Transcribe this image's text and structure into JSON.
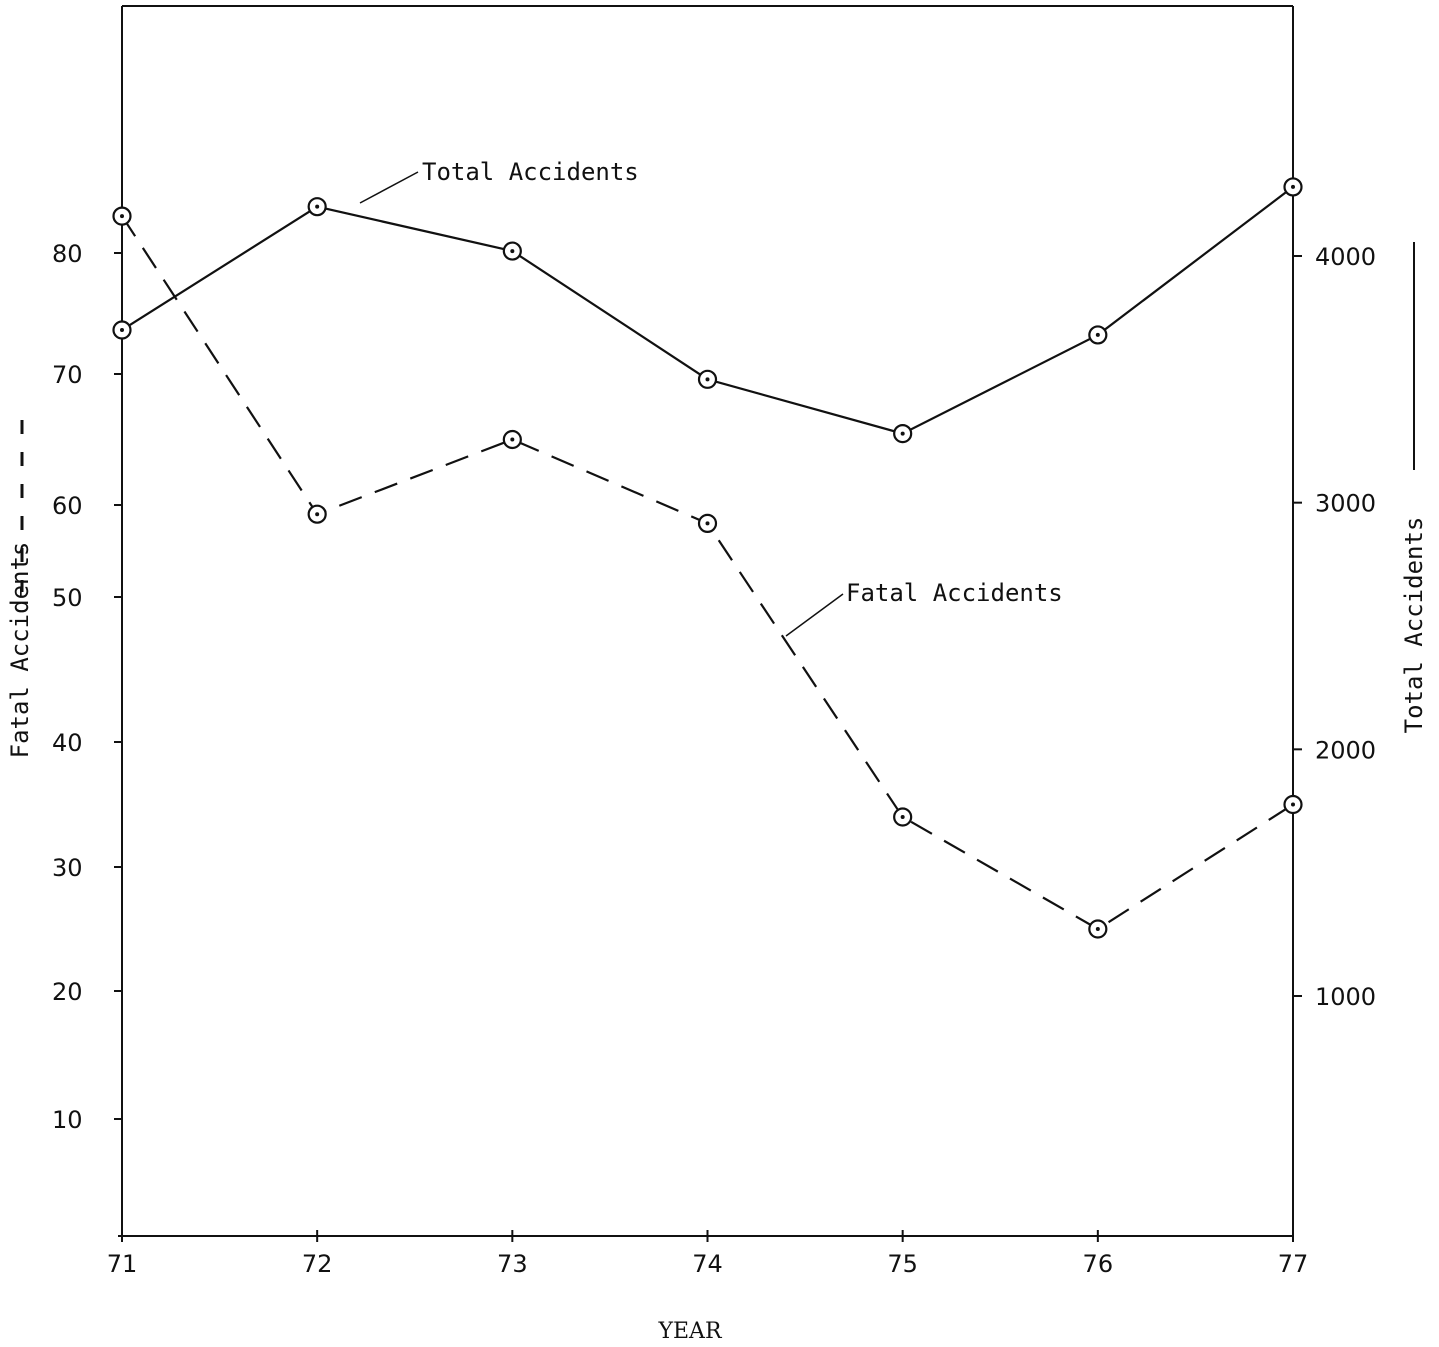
{
  "chart_data": {
    "type": "line",
    "x": [
      "71",
      "72",
      "73",
      "74",
      "75",
      "76",
      "77"
    ],
    "xlabel": "YEAR",
    "y_left": {
      "label": "Fatal Accidents",
      "ticks": [
        "10",
        "20",
        "30",
        "40",
        "50",
        "60",
        "70",
        "80"
      ],
      "lim": [
        0,
        90
      ]
    },
    "y_right": {
      "label": "Total Accidents",
      "ticks": [
        "1000",
        "2000",
        "3000",
        "4000"
      ],
      "lim": [
        0,
        5000
      ]
    },
    "series": [
      {
        "name": "Total Accidents",
        "axis": "right",
        "style": "solid",
        "values": [
          3700,
          4200,
          4020,
          3500,
          3280,
          3680,
          4280
        ]
      },
      {
        "name": "Fatal Accidents",
        "axis": "left",
        "style": "dashed",
        "values": [
          83,
          59,
          65,
          58,
          34,
          25,
          35
        ]
      }
    ],
    "annotations": [
      {
        "text": "Total Accidents",
        "series": "Total Accidents"
      },
      {
        "text": "Fatal Accidents",
        "series": "Fatal Accidents"
      }
    ],
    "grid": false,
    "colors": {
      "line": "#111111",
      "background": "#ffffff"
    }
  }
}
